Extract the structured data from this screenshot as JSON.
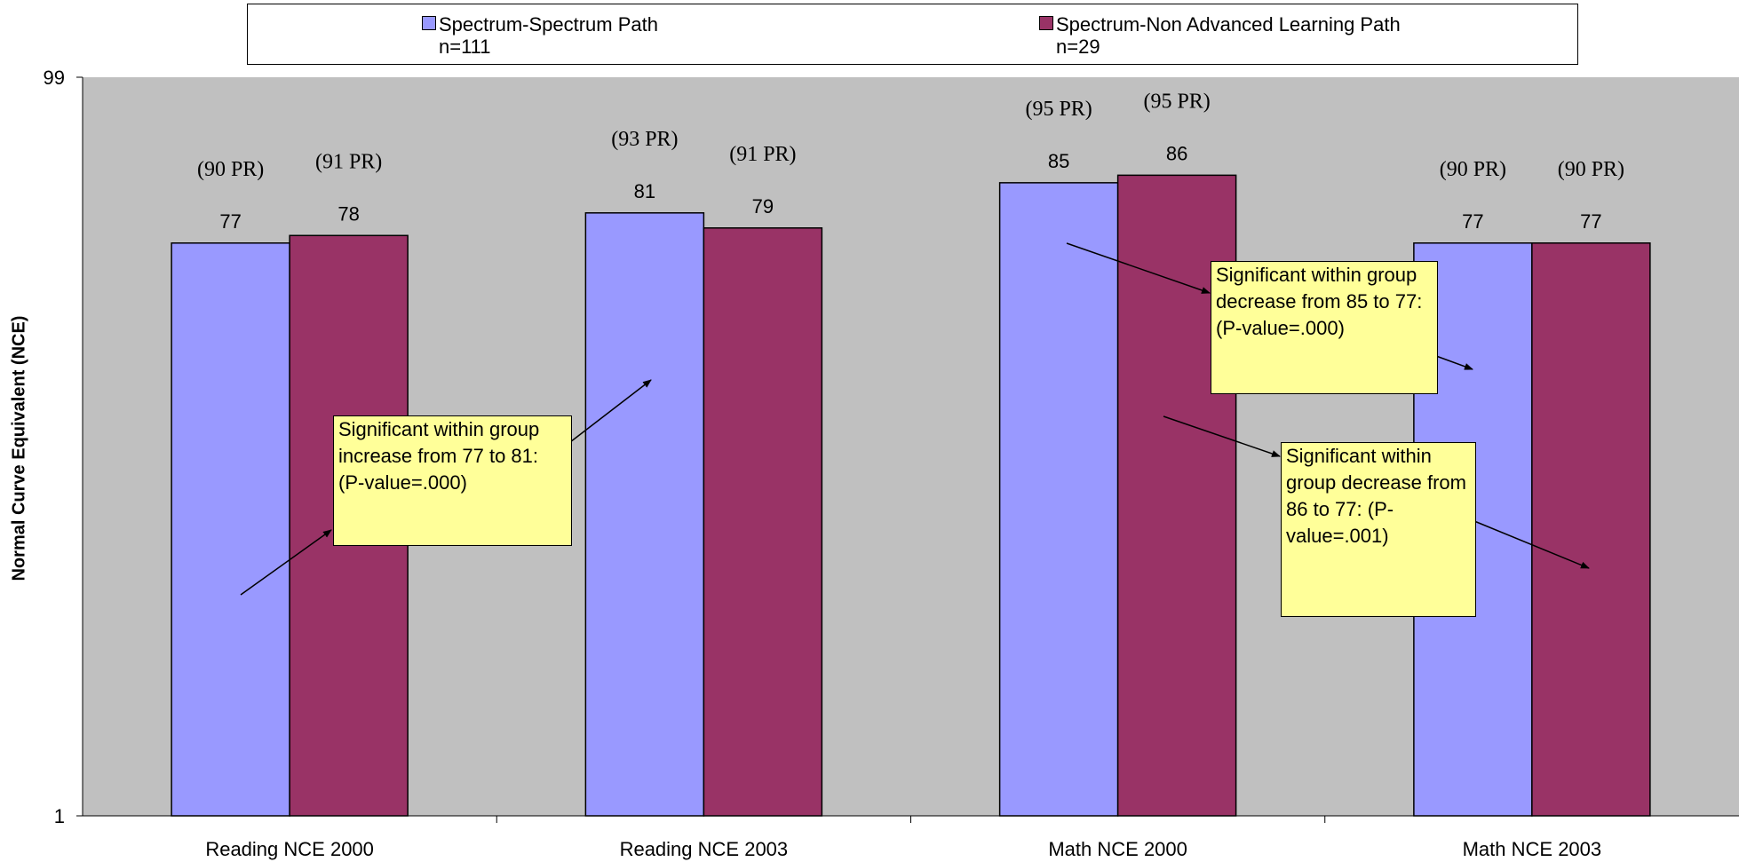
{
  "chart_data": {
    "type": "bar",
    "categories": [
      "Reading NCE 2000",
      "Reading NCE 2003",
      "Math NCE 2000",
      "Math NCE 2003"
    ],
    "series": [
      {
        "name": "Spectrum-Spectrum Path",
        "n_label": "n=111",
        "color": "#9999ff",
        "values": [
          77,
          81,
          85,
          77
        ],
        "pr_labels": [
          "(90 PR)",
          "(93 PR)",
          "(95 PR)",
          "(90 PR)"
        ]
      },
      {
        "name": "Spectrum-Non Advanced Learning Path",
        "n_label": "n=29",
        "color": "#993366",
        "values": [
          78,
          79,
          86,
          77
        ],
        "pr_labels": [
          "(91 PR)",
          "(91 PR)",
          "(95 PR)",
          "(90 PR)"
        ]
      }
    ],
    "ylabel": "Normal Curve Equivalent (NCE)",
    "ylim": [
      1,
      99
    ],
    "yticks": [
      "1",
      "99"
    ],
    "plot_background": "#c0c0c0",
    "legend_position": "top",
    "annotations": [
      "Significant within group increase from 77 to 81: (P-value=.000)",
      "Significant within group decrease from 85 to 77: (P-value=.000)",
      "Significant within group decrease from 86 to 77: (P-value=.001)"
    ]
  }
}
